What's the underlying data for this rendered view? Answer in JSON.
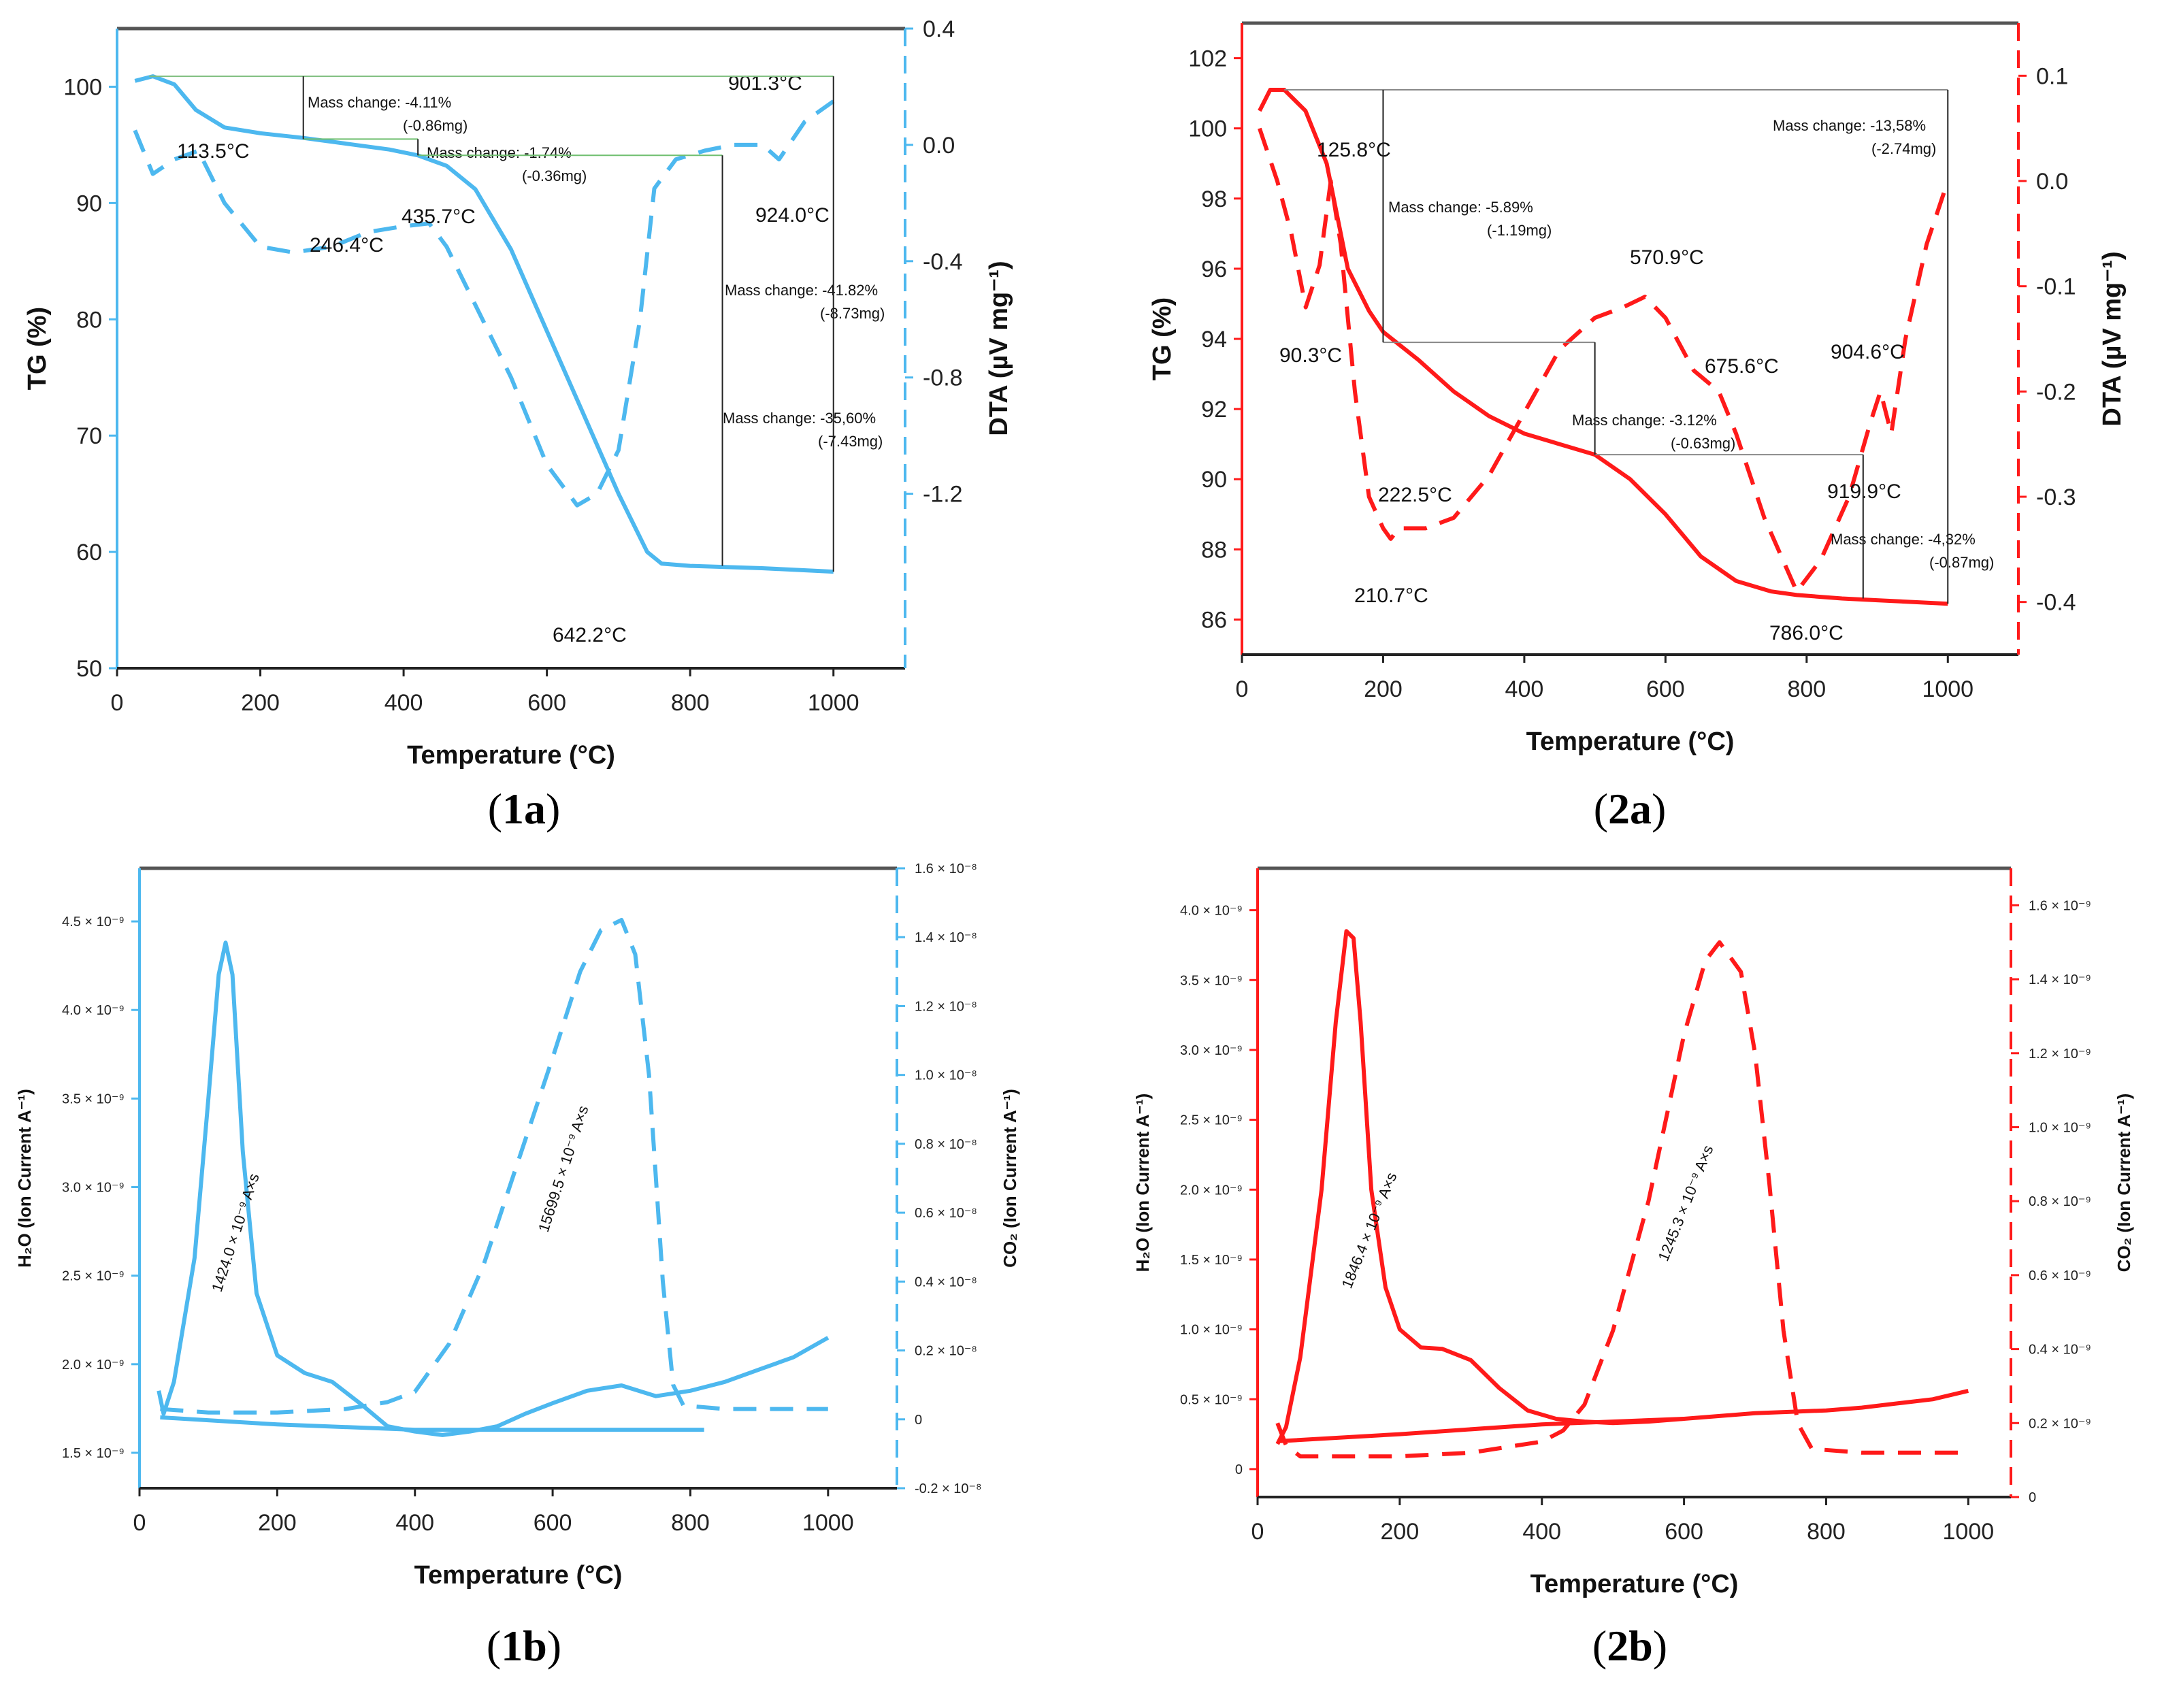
{
  "chart_data": [
    {
      "id": "1a",
      "type": "line",
      "label": "1a",
      "color": "#4db8ef",
      "xlabel": "Temperature (°C)",
      "ylabel": "TG (%)",
      "y2label": "DTA (µV mg⁻¹)",
      "xlim": [
        0,
        1100
      ],
      "ylim": [
        50,
        105
      ],
      "y2lim": [
        -1.8,
        0.4
      ],
      "x_ticks": [
        "0",
        "200",
        "400",
        "600",
        "800",
        "1000"
      ],
      "y_ticks": [
        "50",
        "60",
        "70",
        "80",
        "90",
        "100"
      ],
      "y2_ticks": [
        "-1.2",
        "-0.8",
        "-0.4",
        "0.0",
        "0.4"
      ],
      "series": [
        {
          "name": "TG",
          "axis": "left",
          "dash": false,
          "x": [
            25,
            50,
            80,
            110,
            150,
            200,
            260,
            320,
            380,
            420,
            460,
            500,
            550,
            600,
            650,
            700,
            740,
            760,
            800,
            900,
            1000
          ],
          "y": [
            100.5,
            100.9,
            100.2,
            98.0,
            96.5,
            96.0,
            95.6,
            95.1,
            94.6,
            94.1,
            93.2,
            91.2,
            86.0,
            79.0,
            72.0,
            65.0,
            60.0,
            59.0,
            58.8,
            58.6,
            58.3
          ]
        },
        {
          "name": "DTA",
          "axis": "right",
          "dash": true,
          "x": [
            25,
            50,
            80,
            113.5,
            150,
            200,
            246.4,
            300,
            350,
            400,
            435.7,
            460,
            500,
            550,
            600,
            642.2,
            670,
            700,
            730,
            750,
            780,
            820,
            860,
            901.3,
            924,
            960,
            1000
          ],
          "y": [
            0.05,
            -0.1,
            -0.05,
            -0.02,
            -0.2,
            -0.35,
            -0.37,
            -0.35,
            -0.3,
            -0.28,
            -0.27,
            -0.35,
            -0.55,
            -0.8,
            -1.1,
            -1.24,
            -1.2,
            -1.05,
            -0.6,
            -0.15,
            -0.05,
            -0.02,
            0.0,
            0.0,
            -0.05,
            0.08,
            0.15
          ]
        }
      ],
      "annotations": [
        {
          "text": "113.5°C",
          "x": 113.5
        },
        {
          "text": "246.4°C",
          "x": 246.4
        },
        {
          "text": "435.7°C",
          "x": 435.7
        },
        {
          "text": "642.2°C",
          "x": 642.2
        },
        {
          "text": "901.3°C",
          "x": 901.3
        },
        {
          "text": "924.0°C",
          "x": 924.0
        }
      ],
      "mass_changes": [
        {
          "line1": "Mass change: -4.11%",
          "line2": "(-0.86mg)"
        },
        {
          "line1": "Mass change: -1.74%",
          "line2": "(-0.36mg)"
        },
        {
          "line1": "Mass change: -41.82%",
          "line2": "(-8.73mg)"
        },
        {
          "line1": "Mass change: -35,60%",
          "line2": "(-7.43mg)"
        }
      ]
    },
    {
      "id": "2a",
      "type": "line",
      "label": "2a",
      "color": "#ff1a1a",
      "xlabel": "Temperature (°C)",
      "ylabel": "TG (%)",
      "y2label": "DTA (µV mg⁻¹)",
      "xlim": [
        0,
        1100
      ],
      "ylim": [
        85,
        103
      ],
      "y2lim": [
        -0.45,
        0.15
      ],
      "x_ticks": [
        "0",
        "200",
        "400",
        "600",
        "800",
        "1000"
      ],
      "y_ticks": [
        "86",
        "88",
        "90",
        "92",
        "94",
        "96",
        "98",
        "100",
        "102"
      ],
      "y2_ticks": [
        "-0.4",
        "-0.3",
        "-0.2",
        "-0.1",
        "0.0",
        "0.1"
      ],
      "series": [
        {
          "name": "TG",
          "axis": "left",
          "dash": false,
          "x": [
            25,
            40,
            60,
            90,
            120,
            150,
            180,
            200,
            250,
            300,
            350,
            400,
            450,
            500,
            550,
            600,
            650,
            700,
            750,
            786,
            850,
            900,
            1000
          ],
          "y": [
            100.5,
            101.1,
            101.1,
            100.5,
            99.0,
            96.0,
            94.8,
            94.2,
            93.4,
            92.5,
            91.8,
            91.3,
            91.0,
            90.7,
            90.0,
            89.0,
            87.8,
            87.1,
            86.8,
            86.7,
            86.6,
            86.55,
            86.45
          ]
        },
        {
          "name": "DTA",
          "axis": "right",
          "dash": true,
          "x": [
            25,
            50,
            70,
            90.3,
            110,
            125.8,
            140,
            160,
            180,
            200,
            210.7,
            222.5,
            260,
            300,
            350,
            400,
            450,
            500,
            540,
            570.9,
            600,
            640,
            675.6,
            700,
            740,
            786,
            820,
            860,
            890,
            904.6,
            919.9,
            940,
            970,
            1000
          ],
          "y": [
            0.05,
            0.0,
            -0.05,
            -0.12,
            -0.08,
            0.0,
            -0.06,
            -0.2,
            -0.3,
            -0.33,
            -0.34,
            -0.33,
            -0.33,
            -0.32,
            -0.28,
            -0.22,
            -0.16,
            -0.13,
            -0.12,
            -0.11,
            -0.13,
            -0.18,
            -0.2,
            -0.24,
            -0.32,
            -0.39,
            -0.36,
            -0.3,
            -0.23,
            -0.2,
            -0.24,
            -0.15,
            -0.06,
            0.0
          ]
        }
      ],
      "annotations": [
        {
          "text": "125.8°C",
          "x": 125.8
        },
        {
          "text": "90.3°C",
          "x": 90.3
        },
        {
          "text": "222.5°C",
          "x": 222.5
        },
        {
          "text": "210.7°C",
          "x": 210.7
        },
        {
          "text": "570.9°C",
          "x": 570.9
        },
        {
          "text": "675.6°C",
          "x": 675.6
        },
        {
          "text": "904.6°C",
          "x": 904.6
        },
        {
          "text": "919.9°C",
          "x": 919.9
        },
        {
          "text": "786.0°C",
          "x": 786.0
        }
      ],
      "mass_changes": [
        {
          "line1": "Mass change: -13,58%",
          "line2": "(-2.74mg)"
        },
        {
          "line1": "Mass change: -5.89%",
          "line2": "(-1.19mg)"
        },
        {
          "line1": "Mass change: -3.12%",
          "line2": "(-0.63mg)"
        },
        {
          "line1": "Mass change: -4,32%",
          "line2": "(-0.87mg)"
        }
      ]
    },
    {
      "id": "1b",
      "type": "line",
      "label": "1b",
      "color": "#4db8ef",
      "xlabel": "Temperature (°C)",
      "ylabel": "H₂O (Ion Current A⁻¹)",
      "y2label": "CO₂ (Ion Current A⁻¹)",
      "xlim": [
        0,
        1100
      ],
      "ylim": [
        1.3,
        4.8
      ],
      "y2lim": [
        -0.2,
        1.6
      ],
      "x_ticks": [
        "0",
        "200",
        "400",
        "600",
        "800",
        "1000"
      ],
      "y_ticks": [
        "1.5 × 10⁻⁹",
        "2.0 × 10⁻⁹",
        "2.5 × 10⁻⁹",
        "3.0 × 10⁻⁹",
        "3.5 × 10⁻⁹",
        "4.0 × 10⁻⁹",
        "4.5 × 10⁻⁹"
      ],
      "y2_ticks": [
        "-0.2 × 10⁻⁸",
        "0",
        "0.2 × 10⁻⁸",
        "0.4 × 10⁻⁸",
        "0.6 × 10⁻⁸",
        "0.8 × 10⁻⁸",
        "1.0 × 10⁻⁸",
        "1.2 × 10⁻⁸",
        "1.4 × 10⁻⁸",
        "1.6 × 10⁻⁸"
      ],
      "series": [
        {
          "name": "H₂O",
          "axis": "left",
          "dash": false,
          "x": [
            28,
            35,
            50,
            80,
            100,
            115,
            125,
            135,
            150,
            170,
            200,
            240,
            280,
            320,
            360,
            400,
            440,
            480,
            520,
            560,
            600,
            650,
            700,
            750,
            800,
            850,
            900,
            950,
            1000
          ],
          "y": [
            1.85,
            1.72,
            1.9,
            2.6,
            3.5,
            4.2,
            4.38,
            4.2,
            3.2,
            2.4,
            2.05,
            1.95,
            1.9,
            1.78,
            1.65,
            1.62,
            1.6,
            1.62,
            1.65,
            1.72,
            1.78,
            1.85,
            1.88,
            1.82,
            1.85,
            1.9,
            1.97,
            2.04,
            2.15
          ]
        },
        {
          "name": "H₂O baseline",
          "axis": "left",
          "dash": false,
          "x": [
            30,
            200,
            400,
            600,
            820
          ],
          "y": [
            1.7,
            1.66,
            1.63,
            1.63,
            1.63
          ]
        },
        {
          "name": "CO₂",
          "axis": "right",
          "dash": true,
          "x": [
            30,
            100,
            200,
            300,
            360,
            400,
            450,
            500,
            550,
            600,
            640,
            670,
            700,
            720,
            740,
            760,
            775,
            790,
            850,
            1000
          ],
          "y": [
            0.03,
            0.02,
            0.02,
            0.03,
            0.05,
            0.08,
            0.22,
            0.45,
            0.75,
            1.05,
            1.3,
            1.42,
            1.45,
            1.35,
            1.0,
            0.4,
            0.1,
            0.04,
            0.03,
            0.03
          ]
        }
      ],
      "annotations": [
        {
          "text": "1424.0 × 10⁻⁹ A×s"
        },
        {
          "text": "15699.5 × 10⁻⁹ A×s"
        }
      ]
    },
    {
      "id": "2b",
      "type": "line",
      "label": "2b",
      "color": "#ff1a1a",
      "xlabel": "Temperature (°C)",
      "ylabel": "H₂O (Ion Current A⁻¹)",
      "y2label": "CO₂ (Ion Current A⁻¹)",
      "xlim": [
        0,
        1060
      ],
      "ylim": [
        -0.2,
        4.3
      ],
      "y2lim": [
        0,
        1.7
      ],
      "x_ticks": [
        "0",
        "200",
        "400",
        "600",
        "800",
        "1000"
      ],
      "y_ticks": [
        "0",
        "0.5 × 10⁻⁹",
        "1.0 × 10⁻⁹",
        "1.5 × 10⁻⁹",
        "2.0 × 10⁻⁹",
        "2.5 × 10⁻⁹",
        "3.0 × 10⁻⁹",
        "3.5 × 10⁻⁹",
        "4.0 × 10⁻⁹"
      ],
      "y2_ticks": [
        "0",
        "0.2 × 10⁻⁹",
        "0.4 × 10⁻⁹",
        "0.6 × 10⁻⁹",
        "0.8 × 10⁻⁹",
        "1.0 × 10⁻⁹",
        "1.2 × 10⁻⁹",
        "1.4 × 10⁻⁹",
        "1.6 × 10⁻⁹"
      ],
      "series": [
        {
          "name": "H₂O",
          "axis": "left",
          "dash": false,
          "x": [
            28,
            40,
            60,
            90,
            110,
            125,
            135,
            145,
            160,
            180,
            200,
            230,
            260,
            300,
            340,
            380,
            420,
            460,
            500,
            550,
            600,
            650,
            700,
            750,
            800,
            850,
            900,
            950,
            1000
          ],
          "y": [
            0.18,
            0.3,
            0.8,
            2.0,
            3.2,
            3.85,
            3.8,
            3.2,
            2.0,
            1.3,
            1.0,
            0.87,
            0.86,
            0.78,
            0.58,
            0.42,
            0.36,
            0.34,
            0.33,
            0.34,
            0.36,
            0.38,
            0.4,
            0.41,
            0.42,
            0.44,
            0.47,
            0.5,
            0.56
          ]
        },
        {
          "name": "H₂O baseline",
          "axis": "left",
          "dash": false,
          "x": [
            30,
            200,
            400,
            600
          ],
          "y": [
            0.2,
            0.25,
            0.32,
            0.36
          ]
        },
        {
          "name": "CO₂",
          "axis": "right",
          "dash": true,
          "x": [
            28,
            40,
            60,
            100,
            200,
            300,
            400,
            430,
            460,
            500,
            550,
            600,
            630,
            650,
            680,
            700,
            720,
            740,
            760,
            780,
            850,
            1000
          ],
          "y": [
            0.2,
            0.14,
            0.11,
            0.11,
            0.11,
            0.12,
            0.15,
            0.18,
            0.25,
            0.45,
            0.8,
            1.25,
            1.45,
            1.5,
            1.42,
            1.2,
            0.85,
            0.45,
            0.2,
            0.13,
            0.12,
            0.12
          ]
        }
      ],
      "annotations": [
        {
          "text": "1846.4 × 10⁻⁹ A×s"
        },
        {
          "text": "1245.3 × 10⁻⁹ A×s"
        }
      ]
    }
  ]
}
